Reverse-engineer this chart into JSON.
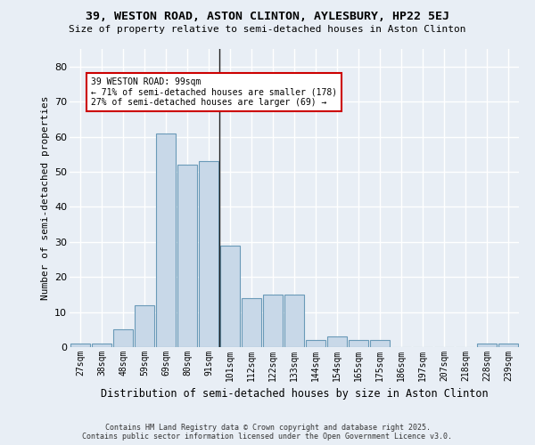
{
  "title_line1": "39, WESTON ROAD, ASTON CLINTON, AYLESBURY, HP22 5EJ",
  "title_line2": "Size of property relative to semi-detached houses in Aston Clinton",
  "xlabel": "Distribution of semi-detached houses by size in Aston Clinton",
  "ylabel": "Number of semi-detached properties",
  "categories": [
    "27sqm",
    "38sqm",
    "48sqm",
    "59sqm",
    "69sqm",
    "80sqm",
    "91sqm",
    "101sqm",
    "112sqm",
    "122sqm",
    "133sqm",
    "144sqm",
    "154sqm",
    "165sqm",
    "175sqm",
    "186sqm",
    "197sqm",
    "207sqm",
    "218sqm",
    "228sqm",
    "239sqm"
  ],
  "values": [
    1,
    1,
    5,
    12,
    61,
    52,
    53,
    29,
    14,
    15,
    15,
    2,
    3,
    2,
    2,
    0,
    0,
    0,
    0,
    1,
    1
  ],
  "bar_color": "#c8d8e8",
  "bar_edge_color": "#6a9ab8",
  "vline_x_index": 7,
  "annotation_title": "39 WESTON ROAD: 99sqm",
  "annotation_line1": "← 71% of semi-detached houses are smaller (178)",
  "annotation_line2": "27% of semi-detached houses are larger (69) →",
  "annotation_box_color": "#ffffff",
  "annotation_border_color": "#cc0000",
  "ylim": [
    0,
    85
  ],
  "yticks": [
    0,
    10,
    20,
    30,
    40,
    50,
    60,
    70,
    80
  ],
  "background_color": "#e8eef5",
  "grid_color": "#ffffff",
  "footer_line1": "Contains HM Land Registry data © Crown copyright and database right 2025.",
  "footer_line2": "Contains public sector information licensed under the Open Government Licence v3.0."
}
